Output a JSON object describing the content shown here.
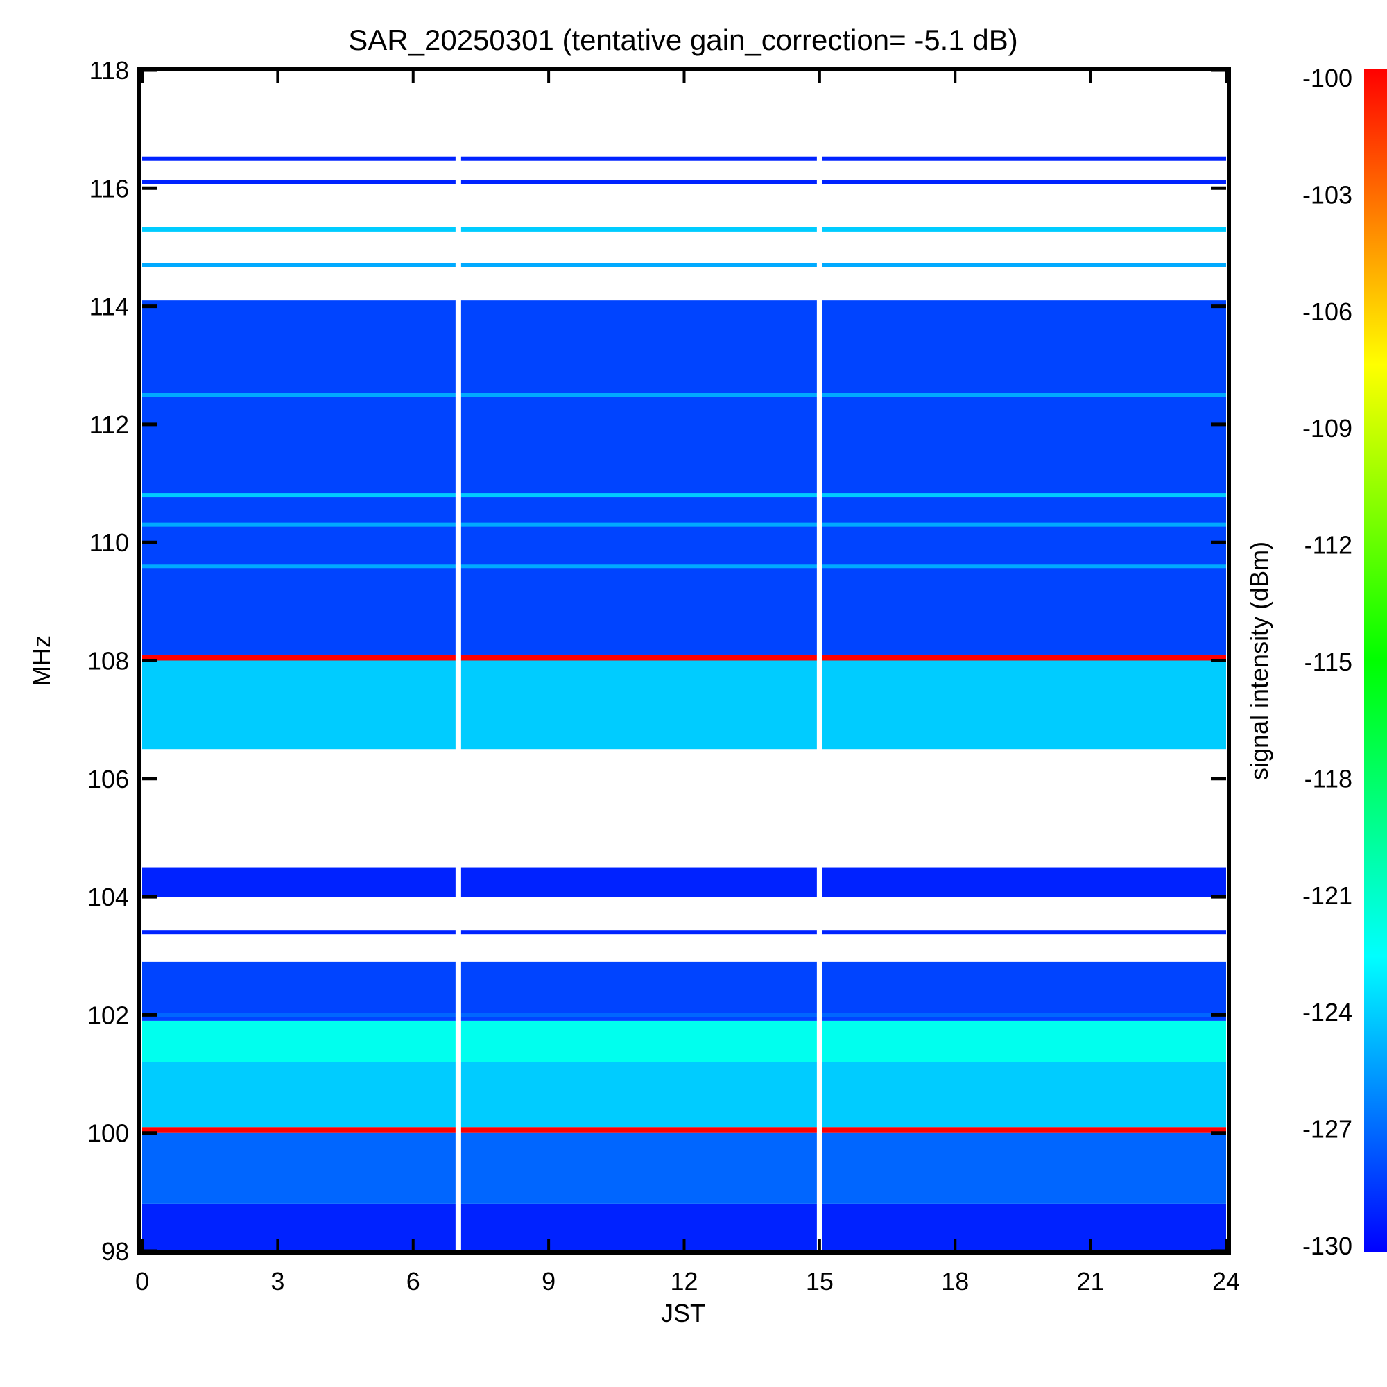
{
  "chart_data": {
    "type": "heatmap",
    "title": "SAR_20250301 (tentative gain_correction= -5.1 dB)",
    "xlabel": "JST",
    "ylabel": "MHz",
    "colorbar_label": "signal intensity (dBm)",
    "xlim": [
      0,
      24
    ],
    "ylim": [
      98,
      118
    ],
    "x_ticks": [
      "0",
      "3",
      "6",
      "9",
      "12",
      "15",
      "18",
      "21",
      "24"
    ],
    "y_ticks": [
      "118",
      "116",
      "114",
      "112",
      "110",
      "108",
      "106",
      "104",
      "102",
      "100",
      "98"
    ],
    "colorbar_range": [
      -130,
      -100
    ],
    "colorbar_ticks": [
      "-100",
      "-103",
      "-106",
      "-109",
      "-112",
      "-115",
      "-118",
      "-121",
      "-124",
      "-127",
      "-130"
    ],
    "colormap": [
      "#0000ff",
      "#0080ff",
      "#00ffff",
      "#00ff80",
      "#00ff00",
      "#80ff00",
      "#ffff00",
      "#ff8000",
      "#ff0000"
    ],
    "data_gaps_jst": [
      7.0,
      15.0
    ],
    "frequency_bands": [
      {
        "from_mhz": 98.0,
        "to_mhz": 98.8,
        "dbm": -129
      },
      {
        "from_mhz": 98.8,
        "to_mhz": 100.0,
        "dbm": -127
      },
      {
        "from_mhz": 100.0,
        "to_mhz": 100.1,
        "dbm": -100
      },
      {
        "from_mhz": 100.1,
        "to_mhz": 101.2,
        "dbm": -124
      },
      {
        "from_mhz": 101.2,
        "to_mhz": 101.9,
        "dbm": -122
      },
      {
        "from_mhz": 101.9,
        "to_mhz": 102.9,
        "dbm": -128
      },
      {
        "from_mhz": 102.9,
        "to_mhz": 104.0,
        "dbm": -131
      },
      {
        "from_mhz": 104.0,
        "to_mhz": 104.5,
        "dbm": -129
      },
      {
        "from_mhz": 104.5,
        "to_mhz": 106.5,
        "dbm": -131
      },
      {
        "from_mhz": 106.5,
        "to_mhz": 108.0,
        "dbm": -124
      },
      {
        "from_mhz": 108.0,
        "to_mhz": 108.1,
        "dbm": -100
      },
      {
        "from_mhz": 108.1,
        "to_mhz": 114.1,
        "dbm": -128
      },
      {
        "from_mhz": 114.1,
        "to_mhz": 118.0,
        "dbm": -131
      }
    ],
    "steady_lines": [
      {
        "mhz": 100.05,
        "dbm": -100
      },
      {
        "mhz": 108.05,
        "dbm": -100
      },
      {
        "mhz": 110.8,
        "dbm": -124
      },
      {
        "mhz": 109.6,
        "dbm": -125
      },
      {
        "mhz": 110.3,
        "dbm": -125
      },
      {
        "mhz": 112.5,
        "dbm": -125
      },
      {
        "mhz": 115.3,
        "dbm": -124
      },
      {
        "mhz": 114.7,
        "dbm": -125
      },
      {
        "mhz": 116.1,
        "dbm": -129
      },
      {
        "mhz": 116.5,
        "dbm": -129
      },
      {
        "mhz": 103.4,
        "dbm": -129
      },
      {
        "mhz": 102.0,
        "dbm": -127
      }
    ]
  }
}
